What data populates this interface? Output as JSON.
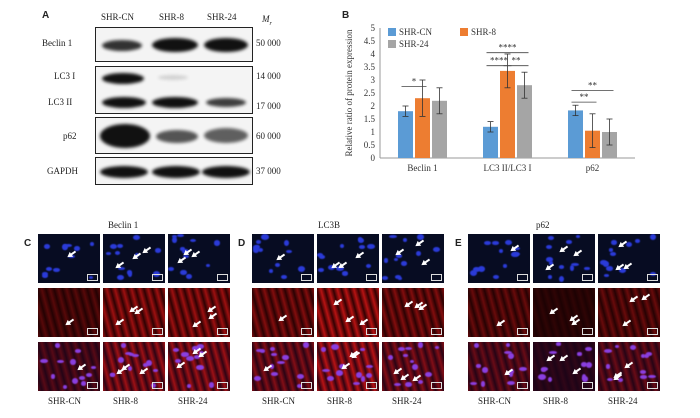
{
  "panel_a": {
    "letter": "A",
    "columns": [
      "SHR-CN",
      "SHR-8",
      "SHR-24"
    ],
    "mr_label": "M",
    "mr_sub": "r",
    "rows": [
      {
        "left": "Beclin 1",
        "right": "50 000"
      },
      {
        "left": "LC3 I",
        "right": "14 000"
      },
      {
        "left": "LC3 II",
        "right": "17 000"
      },
      {
        "left": "p62",
        "right": "60 000"
      },
      {
        "left": "GAPDH",
        "right": "37 000"
      }
    ]
  },
  "panel_b": {
    "letter": "B"
  },
  "chart_data": {
    "type": "bar",
    "title": "",
    "xlabel": "",
    "ylabel": "Relative ratio of protein expression",
    "ylim": [
      0,
      5
    ],
    "yticks": [
      "0",
      "0.5",
      "1",
      "1.5",
      "2",
      "2.5",
      "3",
      "3.5",
      "4",
      "4.5",
      "5"
    ],
    "categories": [
      "Beclin 1",
      "LC3 II/LC3 I",
      "p62"
    ],
    "series": [
      {
        "name": "SHR-CN",
        "color": "#5b9bd5",
        "values": [
          1.8,
          1.2,
          1.83
        ],
        "errors": [
          0.2,
          0.2,
          0.2
        ]
      },
      {
        "name": "SHR-8",
        "color": "#ed7d31",
        "values": [
          2.3,
          3.35,
          1.05
        ],
        "errors": [
          0.7,
          0.65,
          0.65
        ]
      },
      {
        "name": "SHR-24",
        "color": "#a5a5a5",
        "values": [
          2.2,
          2.8,
          1.0
        ],
        "errors": [
          0.5,
          0.5,
          0.5
        ]
      }
    ],
    "legend_placement": "top-left",
    "significance": [
      {
        "label": "*",
        "y": 2.75
      },
      {
        "label": "****",
        "y": 4.05
      },
      {
        "label": "****",
        "y": 3.55
      },
      {
        "label": "**",
        "y": 3.55
      },
      {
        "label": "**",
        "y": 2.6
      },
      {
        "label": "**",
        "y": 2.15
      }
    ]
  },
  "micrographs": {
    "groups": [
      {
        "letter": "C",
        "title": "Beclin 1"
      },
      {
        "letter": "D",
        "title": "LC3B"
      },
      {
        "letter": "E",
        "title": "p62"
      }
    ],
    "column_labels": [
      "SHR-CN",
      "SHR-8",
      "SHR-24"
    ]
  }
}
